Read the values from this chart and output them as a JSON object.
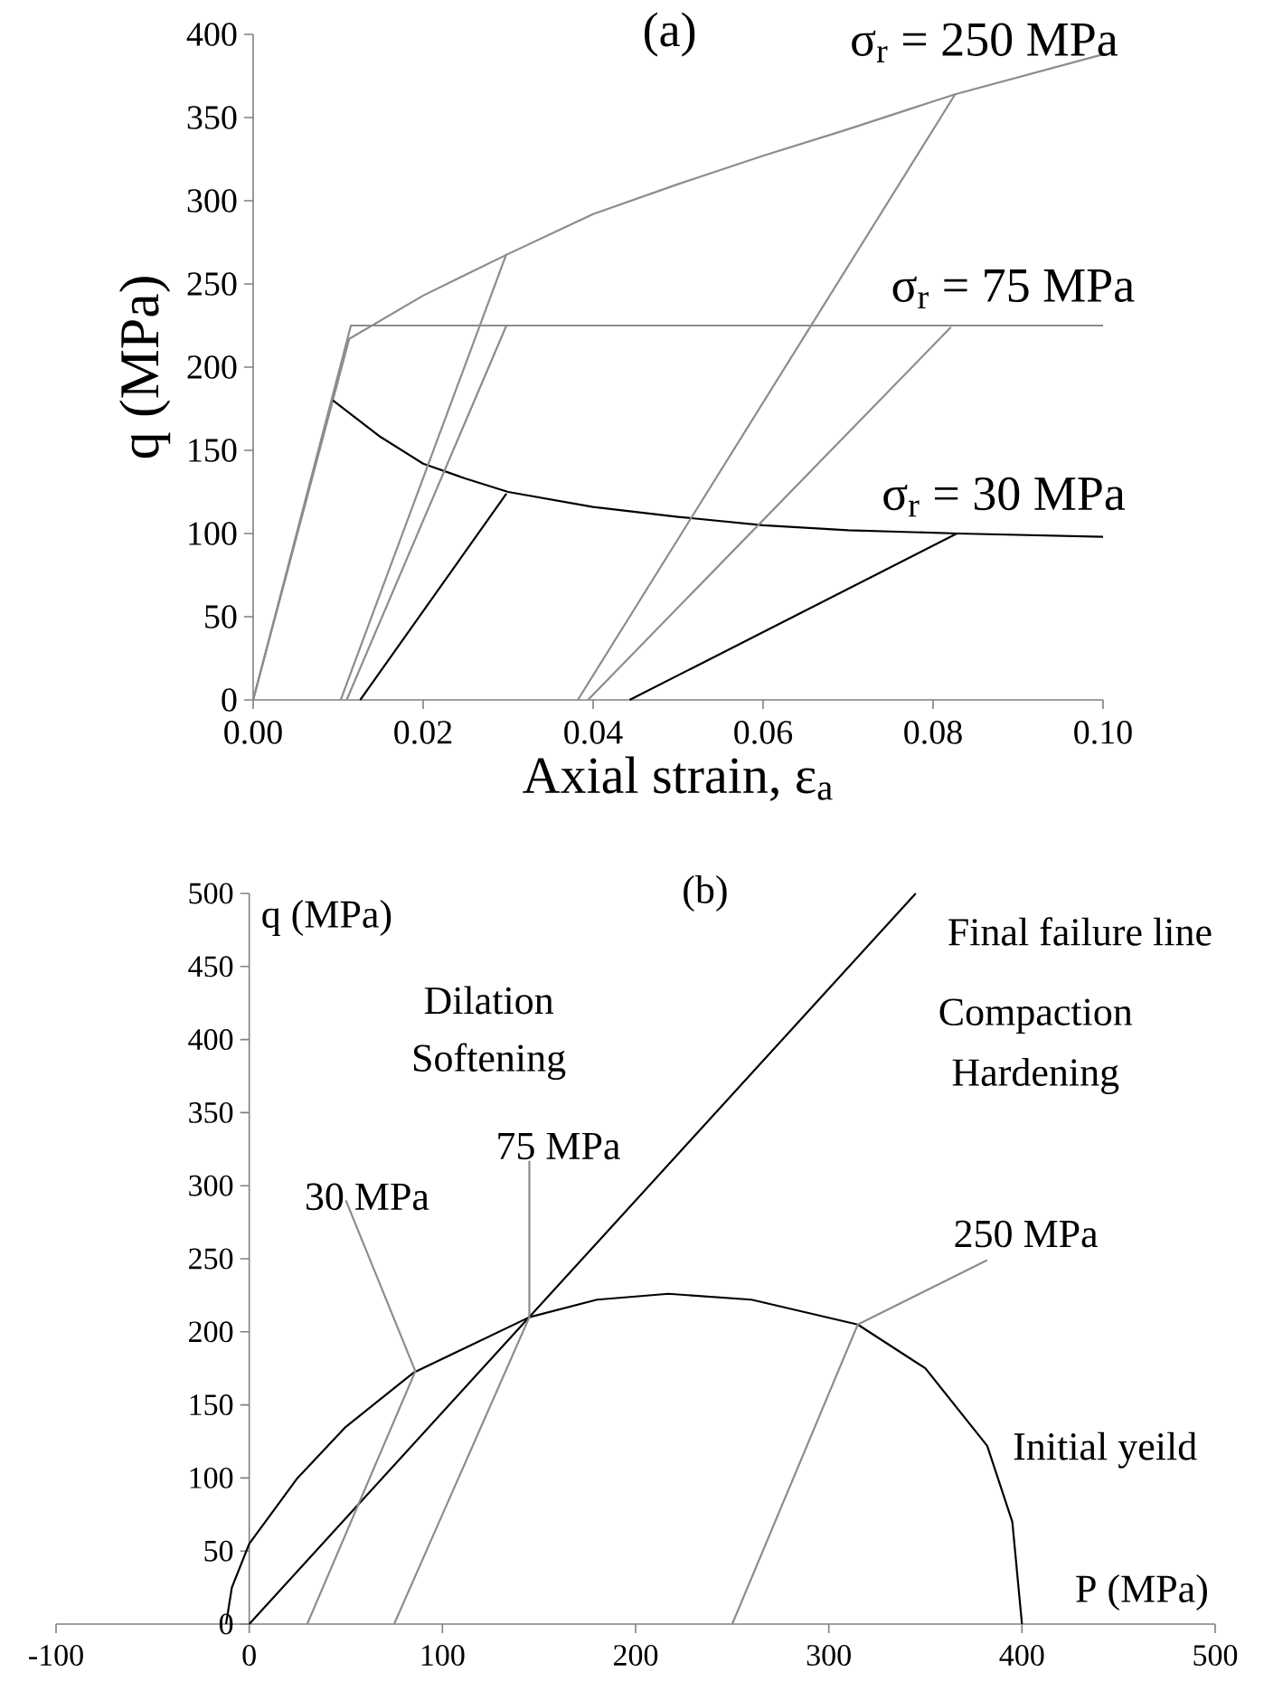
{
  "chart_data": [
    {
      "type": "line",
      "title": "(a)",
      "xlabel": "Axial strain, ε$_{a}$",
      "ylabel": "q (MPa)",
      "xlim": [
        0,
        0.1
      ],
      "ylim": [
        0,
        400
      ],
      "xticks": [
        {
          "value": 0,
          "label": "0.00"
        },
        {
          "value": 0.02,
          "label": "0.02"
        },
        {
          "value": 0.04,
          "label": "0.04"
        },
        {
          "value": 0.06,
          "label": "0.06"
        },
        {
          "value": 0.08,
          "label": "0.08"
        },
        {
          "value": 0.1,
          "label": "0.10"
        }
      ],
      "yticks": [
        0,
        50,
        100,
        150,
        200,
        250,
        300,
        350,
        400
      ],
      "series": [
        {
          "color": "#8c8c8c",
          "x": [
            0,
            0.0113,
            0.02,
            0.03,
            0.04,
            0.05,
            0.06,
            0.07,
            0.0826,
            0.1
          ],
          "values": [
            0,
            217,
            243,
            268,
            292,
            310,
            327,
            343,
            364,
            388
          ]
        },
        {
          "color": "#8c8c8c",
          "x": [
            0,
            0.0115,
            0.1
          ],
          "values": [
            0,
            225,
            225
          ]
        },
        {
          "color": "#000000",
          "x": [
            0.0094,
            0.015,
            0.02,
            0.025,
            0.03,
            0.04,
            0.05,
            0.06,
            0.07,
            0.083,
            0.1
          ],
          "values": [
            180,
            158,
            142,
            133,
            125,
            116,
            110,
            105,
            102,
            100,
            98
          ]
        },
        {
          "color": "#8c8c8c",
          "x": [
            0.0103,
            0.0298
          ],
          "values": [
            0,
            268
          ]
        },
        {
          "color": "#8c8c8c",
          "x": [
            0.011,
            0.0298
          ],
          "values": [
            0,
            225
          ]
        },
        {
          "color": "#000000",
          "x": [
            0.0126,
            0.0298
          ],
          "values": [
            0,
            124
          ]
        },
        {
          "color": "#8c8c8c",
          "x": [
            0.0382,
            0.0826
          ],
          "values": [
            0,
            364
          ]
        },
        {
          "color": "#8c8c8c",
          "x": [
            0.0394,
            0.0821
          ],
          "values": [
            0,
            224
          ]
        },
        {
          "color": "#000000",
          "x": [
            0.0443,
            0.0828
          ],
          "values": [
            0,
            100
          ]
        }
      ],
      "annotations": [
        "σ$_{r}$ = 250 MPa",
        "σ$_{r}$ = 75 MPa",
        "σ$_{r}$ = 30 MPa"
      ]
    },
    {
      "type": "line",
      "title": "(b)",
      "xlabel": "P (MPa)",
      "ylabel": "q (MPa)",
      "xlim": [
        -100,
        500
      ],
      "ylim": [
        0,
        500
      ],
      "xticks": [
        -100,
        0,
        100,
        200,
        300,
        400,
        500
      ],
      "yticks": [
        0,
        50,
        100,
        150,
        200,
        250,
        300,
        350,
        400,
        450,
        500
      ],
      "series": [
        {
          "color": "#000000",
          "x": [
            -12,
            -9,
            0,
            25,
            50,
            85,
            145,
            180,
            217,
            260,
            315,
            350,
            382,
            395,
            400
          ],
          "values": [
            0,
            25,
            55,
            100,
            135,
            172,
            210,
            222,
            226,
            222,
            205,
            175,
            122,
            70,
            0
          ]
        },
        {
          "color": "#000000",
          "x": [
            0,
            345
          ],
          "values": [
            0,
            500
          ]
        },
        {
          "color": "#8c8c8c",
          "x": [
            30,
            86,
            50
          ],
          "values": [
            0,
            173,
            290
          ]
        },
        {
          "color": "#8c8c8c",
          "x": [
            75,
            145,
            145
          ],
          "values": [
            0,
            210,
            317
          ]
        },
        {
          "color": "#8c8c8c",
          "x": [
            250,
            315,
            382
          ],
          "values": [
            0,
            205,
            249
          ]
        }
      ],
      "annotations": [
        "Final failure line",
        "Dilation",
        "Softening",
        "Compaction",
        "Hardening",
        "75 MPa",
        "30 MPa",
        "250 MPa",
        "Initial yeild"
      ]
    }
  ]
}
